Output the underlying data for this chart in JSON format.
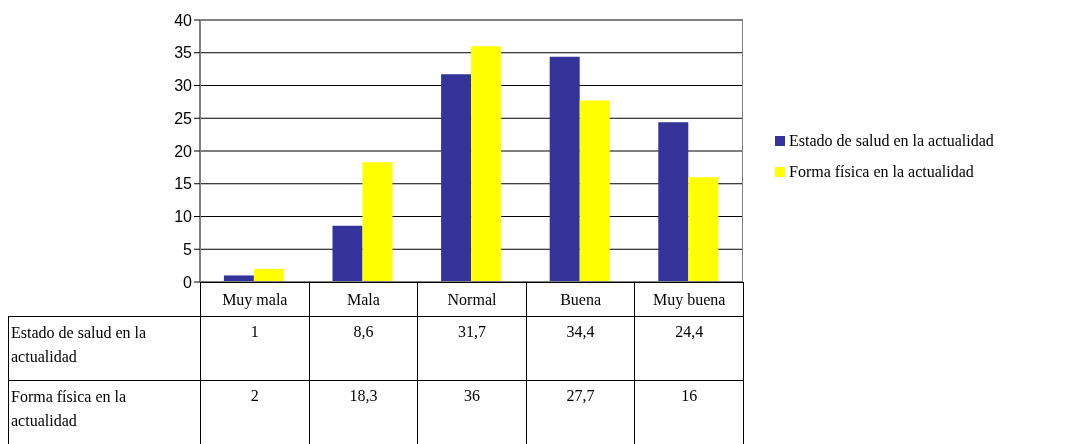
{
  "chart_data": {
    "type": "bar",
    "categories": [
      "Muy mala",
      "Mala",
      "Normal",
      "Buena",
      "Muy buena"
    ],
    "series": [
      {
        "name": "Estado de salud en la actualidad",
        "color": "#333399",
        "values": [
          1,
          8.6,
          31.7,
          34.4,
          24.4
        ],
        "value_labels": [
          "1",
          "8,6",
          "31,7",
          "34,4",
          "24,4"
        ]
      },
      {
        "name": "Forma física en la actualidad",
        "color": "#ffff00",
        "values": [
          2,
          18.3,
          36,
          27.7,
          16
        ],
        "value_labels": [
          "2",
          "18,3",
          "36",
          "27,7",
          "16"
        ]
      }
    ],
    "ylim": [
      0,
      40
    ],
    "yticks": [
      0,
      5,
      10,
      15,
      20,
      25,
      30,
      35,
      40
    ],
    "grid": "y",
    "legend": "right"
  }
}
